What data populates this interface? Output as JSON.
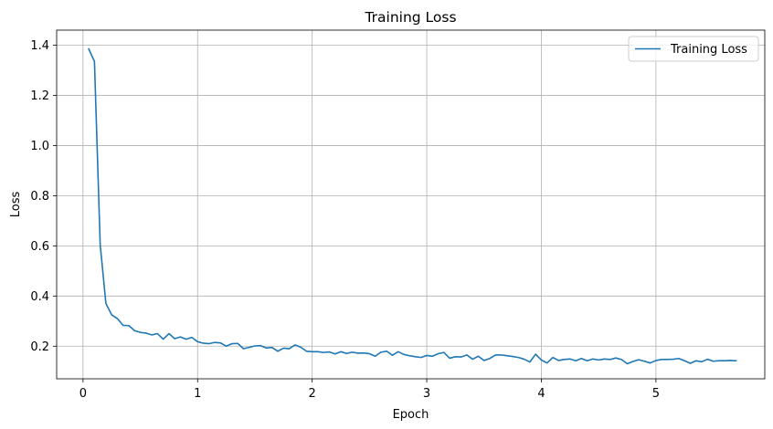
{
  "chart_data": {
    "type": "line",
    "title": "Training Loss",
    "xlabel": "Epoch",
    "ylabel": "Loss",
    "xlim": [
      -0.23,
      5.95
    ],
    "ylim": [
      0.07,
      1.46
    ],
    "xticks": [
      0,
      1,
      2,
      3,
      4,
      5
    ],
    "yticks": [
      0.2,
      0.4,
      0.6,
      0.8,
      1.0,
      1.2,
      1.4
    ],
    "xtick_labels": [
      "0",
      "1",
      "2",
      "3",
      "4",
      "5"
    ],
    "ytick_labels": [
      "0.2",
      "0.4",
      "0.6",
      "0.8",
      "1.0",
      "1.2",
      "1.4"
    ],
    "grid": true,
    "legend": "top-right",
    "series": [
      {
        "name": "Training Loss",
        "color": "#1f77b4",
        "x": [
          0.05,
          0.1,
          0.15,
          0.2,
          0.25,
          0.3,
          0.35,
          0.4,
          0.45,
          0.5,
          0.55,
          0.6,
          0.65,
          0.7,
          0.75,
          0.8,
          0.85,
          0.9,
          0.95,
          1.0,
          1.05,
          1.1,
          1.15,
          1.2,
          1.25,
          1.3,
          1.35,
          1.4,
          1.45,
          1.5,
          1.55,
          1.6,
          1.65,
          1.7,
          1.75,
          1.8,
          1.85,
          1.9,
          1.95,
          2.0,
          2.05,
          2.1,
          2.15,
          2.2,
          2.25,
          2.3,
          2.35,
          2.4,
          2.45,
          2.5,
          2.55,
          2.6,
          2.65,
          2.7,
          2.75,
          2.8,
          2.85,
          2.9,
          2.95,
          3.0,
          3.05,
          3.1,
          3.15,
          3.2,
          3.25,
          3.3,
          3.35,
          3.4,
          3.45,
          3.5,
          3.55,
          3.6,
          3.65,
          3.7,
          3.75,
          3.8,
          3.85,
          3.9,
          3.95,
          4.0,
          4.05,
          4.1,
          4.15,
          4.2,
          4.25,
          4.3,
          4.35,
          4.4,
          4.45,
          4.5,
          4.55,
          4.6,
          4.65,
          4.7,
          4.75,
          4.8,
          4.85,
          4.9,
          4.95,
          5.0,
          5.05,
          5.1,
          5.15,
          5.2,
          5.25,
          5.3,
          5.35,
          5.4,
          5.45,
          5.5,
          5.55,
          5.6,
          5.65,
          5.7
        ],
        "y": [
          1.385,
          1.335,
          0.605,
          0.37,
          0.325,
          0.31,
          0.283,
          0.282,
          0.262,
          0.255,
          0.252,
          0.245,
          0.25,
          0.228,
          0.25,
          0.23,
          0.237,
          0.228,
          0.235,
          0.218,
          0.212,
          0.21,
          0.215,
          0.213,
          0.2,
          0.21,
          0.211,
          0.19,
          0.195,
          0.201,
          0.202,
          0.193,
          0.195,
          0.18,
          0.192,
          0.19,
          0.205,
          0.196,
          0.18,
          0.178,
          0.178,
          0.175,
          0.177,
          0.169,
          0.178,
          0.171,
          0.176,
          0.172,
          0.173,
          0.17,
          0.16,
          0.176,
          0.18,
          0.164,
          0.178,
          0.167,
          0.162,
          0.158,
          0.155,
          0.163,
          0.16,
          0.17,
          0.175,
          0.152,
          0.158,
          0.157,
          0.165,
          0.148,
          0.16,
          0.143,
          0.151,
          0.165,
          0.165,
          0.162,
          0.159,
          0.155,
          0.148,
          0.137,
          0.168,
          0.145,
          0.133,
          0.155,
          0.143,
          0.147,
          0.149,
          0.142,
          0.151,
          0.142,
          0.149,
          0.145,
          0.149,
          0.147,
          0.153,
          0.147,
          0.13,
          0.139,
          0.146,
          0.14,
          0.133,
          0.143,
          0.147,
          0.147,
          0.148,
          0.151,
          0.142,
          0.132,
          0.142,
          0.138,
          0.148,
          0.14,
          0.142,
          0.142,
          0.143,
          0.142
        ]
      }
    ]
  }
}
